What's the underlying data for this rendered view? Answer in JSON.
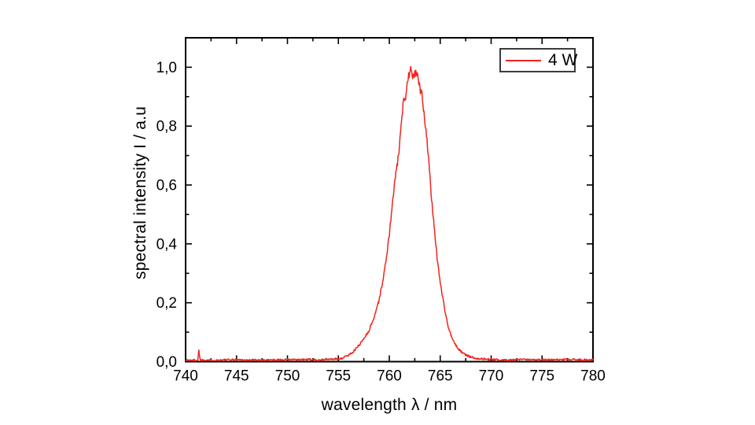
{
  "figure": {
    "background": "#ffffff",
    "frame_color": "#000000",
    "text_color": "#000000",
    "legend_border_color": "#3c3c3c"
  },
  "chart_data": {
    "type": "line",
    "title": "",
    "xlabel": "wavelength λ / nm",
    "ylabel": "spectral intensity I / a.u",
    "xlim": [
      740,
      780
    ],
    "ylim": [
      0,
      1.1
    ],
    "grid": false,
    "legend_position": "top-right",
    "x_major_ticks": [
      740,
      745,
      750,
      755,
      760,
      765,
      770,
      775,
      780
    ],
    "x_tick_labels": [
      "740",
      "745",
      "750",
      "755",
      "760",
      "765",
      "770",
      "775",
      "780"
    ],
    "x_minor_ticks": [
      742.5,
      747.5,
      752.5,
      757.5,
      762.5,
      767.5,
      772.5,
      777.5
    ],
    "y_major_ticks": [
      0,
      0.2,
      0.4,
      0.6,
      0.8,
      1.0
    ],
    "y_tick_labels": [
      "0,0",
      "0,2",
      "0,4",
      "0,6",
      "0,8",
      "1,0"
    ],
    "y_minor_ticks": [
      0.1,
      0.3,
      0.5,
      0.7,
      0.9
    ],
    "legend": {
      "entries": [
        {
          "label": "4 W",
          "color": "#f3231d"
        }
      ]
    },
    "series": [
      {
        "name": "4 W",
        "color": "#f3231d",
        "peak_center_nm": 762.1,
        "fwhm_nm": 4.1,
        "sample_step": 0.05,
        "noise": {
          "seed": 1337,
          "base_amp": 0.0032,
          "rel_amp": 0.011
        },
        "anchors": [
          [
            740,
            0.006
          ],
          [
            740.5,
            0.005
          ],
          [
            741.2,
            0.005
          ],
          [
            741.3,
            0.038
          ],
          [
            741.45,
            0.005
          ],
          [
            742,
            0.006
          ],
          [
            743,
            0.005
          ],
          [
            744,
            0.006
          ],
          [
            745,
            0.007
          ],
          [
            746,
            0.005
          ],
          [
            747,
            0.006
          ],
          [
            748,
            0.005
          ],
          [
            749,
            0.006
          ],
          [
            750,
            0.007
          ],
          [
            751,
            0.006
          ],
          [
            752,
            0.007
          ],
          [
            753,
            0.006
          ],
          [
            754,
            0.008
          ],
          [
            754.8,
            0.009
          ],
          [
            755.4,
            0.012
          ],
          [
            756,
            0.022
          ],
          [
            756.5,
            0.035
          ],
          [
            757,
            0.055
          ],
          [
            757.5,
            0.078
          ],
          [
            758,
            0.105
          ],
          [
            758.5,
            0.15
          ],
          [
            759,
            0.21
          ],
          [
            759.4,
            0.28
          ],
          [
            759.7,
            0.35
          ],
          [
            760,
            0.43
          ],
          [
            760.2,
            0.5
          ],
          [
            760.5,
            0.6
          ],
          [
            760.9,
            0.7
          ],
          [
            761.1,
            0.77
          ],
          [
            761.3,
            0.85
          ],
          [
            761.45,
            0.905
          ],
          [
            761.55,
            0.885
          ],
          [
            761.7,
            0.935
          ],
          [
            761.85,
            0.965
          ],
          [
            762,
            0.985
          ],
          [
            762.1,
            1.0
          ],
          [
            762.2,
            0.985
          ],
          [
            762.32,
            0.966
          ],
          [
            762.45,
            0.975
          ],
          [
            762.6,
            0.985
          ],
          [
            762.75,
            0.968
          ],
          [
            762.9,
            0.945
          ],
          [
            763.05,
            0.918
          ],
          [
            763.15,
            0.924
          ],
          [
            763.3,
            0.875
          ],
          [
            763.6,
            0.79
          ],
          [
            763.9,
            0.67
          ],
          [
            764.1,
            0.57
          ],
          [
            764.3,
            0.5
          ],
          [
            764.7,
            0.35
          ],
          [
            765,
            0.27
          ],
          [
            765.4,
            0.185
          ],
          [
            765.8,
            0.115
          ],
          [
            766.3,
            0.068
          ],
          [
            766.8,
            0.042
          ],
          [
            767.3,
            0.027
          ],
          [
            767.8,
            0.018
          ],
          [
            768.4,
            0.012
          ],
          [
            769.2,
            0.009
          ],
          [
            770,
            0.007
          ],
          [
            771,
            0.006
          ],
          [
            772,
            0.006
          ],
          [
            773,
            0.007
          ],
          [
            774,
            0.006
          ],
          [
            775,
            0.007
          ],
          [
            776,
            0.006
          ],
          [
            777,
            0.006
          ],
          [
            778,
            0.007
          ],
          [
            779,
            0.006
          ],
          [
            780,
            0.006
          ]
        ]
      }
    ]
  }
}
